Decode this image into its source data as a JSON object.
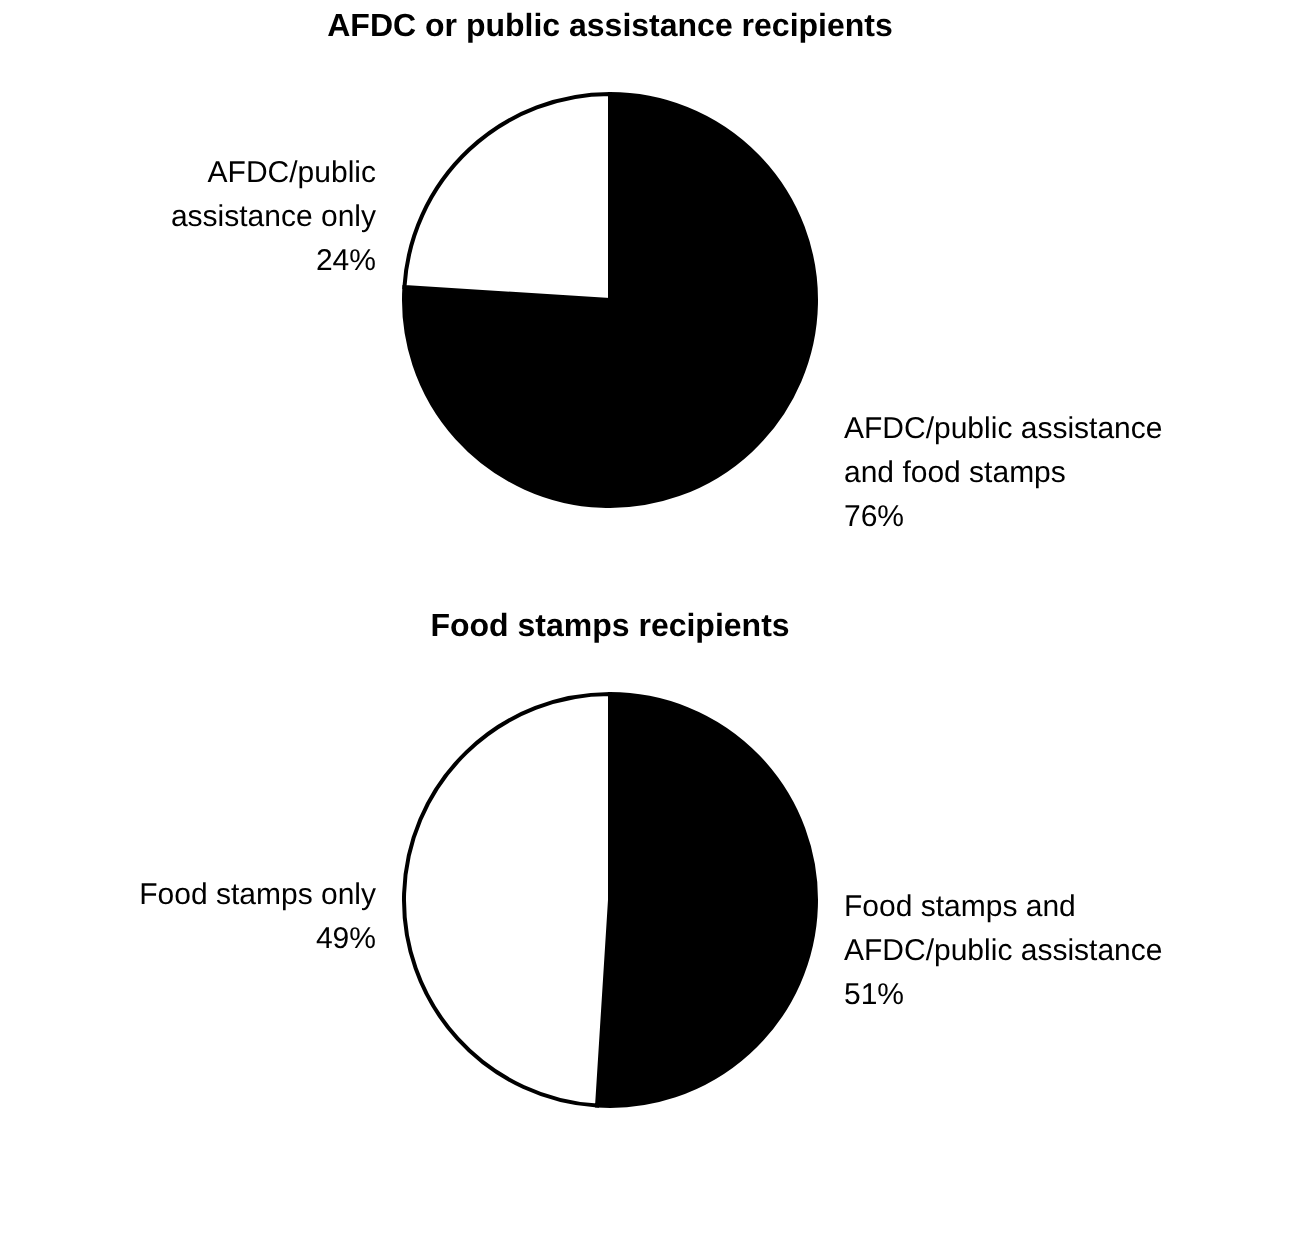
{
  "chart_data": [
    {
      "type": "pie",
      "title": "AFDC or public assistance recipients",
      "categories": [
        "AFDC/public assistance\nand food stamps",
        "AFDC/public\nassistance only"
      ],
      "values": [
        76,
        24
      ],
      "value_labels": [
        "76%",
        "24%"
      ],
      "colors": [
        "#000000",
        "#ffffff"
      ],
      "legend": false
    },
    {
      "type": "pie",
      "title": "Food stamps recipients",
      "categories": [
        "Food stamps and\nAFDC/public assistance",
        "Food stamps only"
      ],
      "values": [
        51,
        49
      ],
      "value_labels": [
        "51%",
        "49%"
      ],
      "colors": [
        "#000000",
        "#ffffff"
      ],
      "legend": false
    }
  ]
}
